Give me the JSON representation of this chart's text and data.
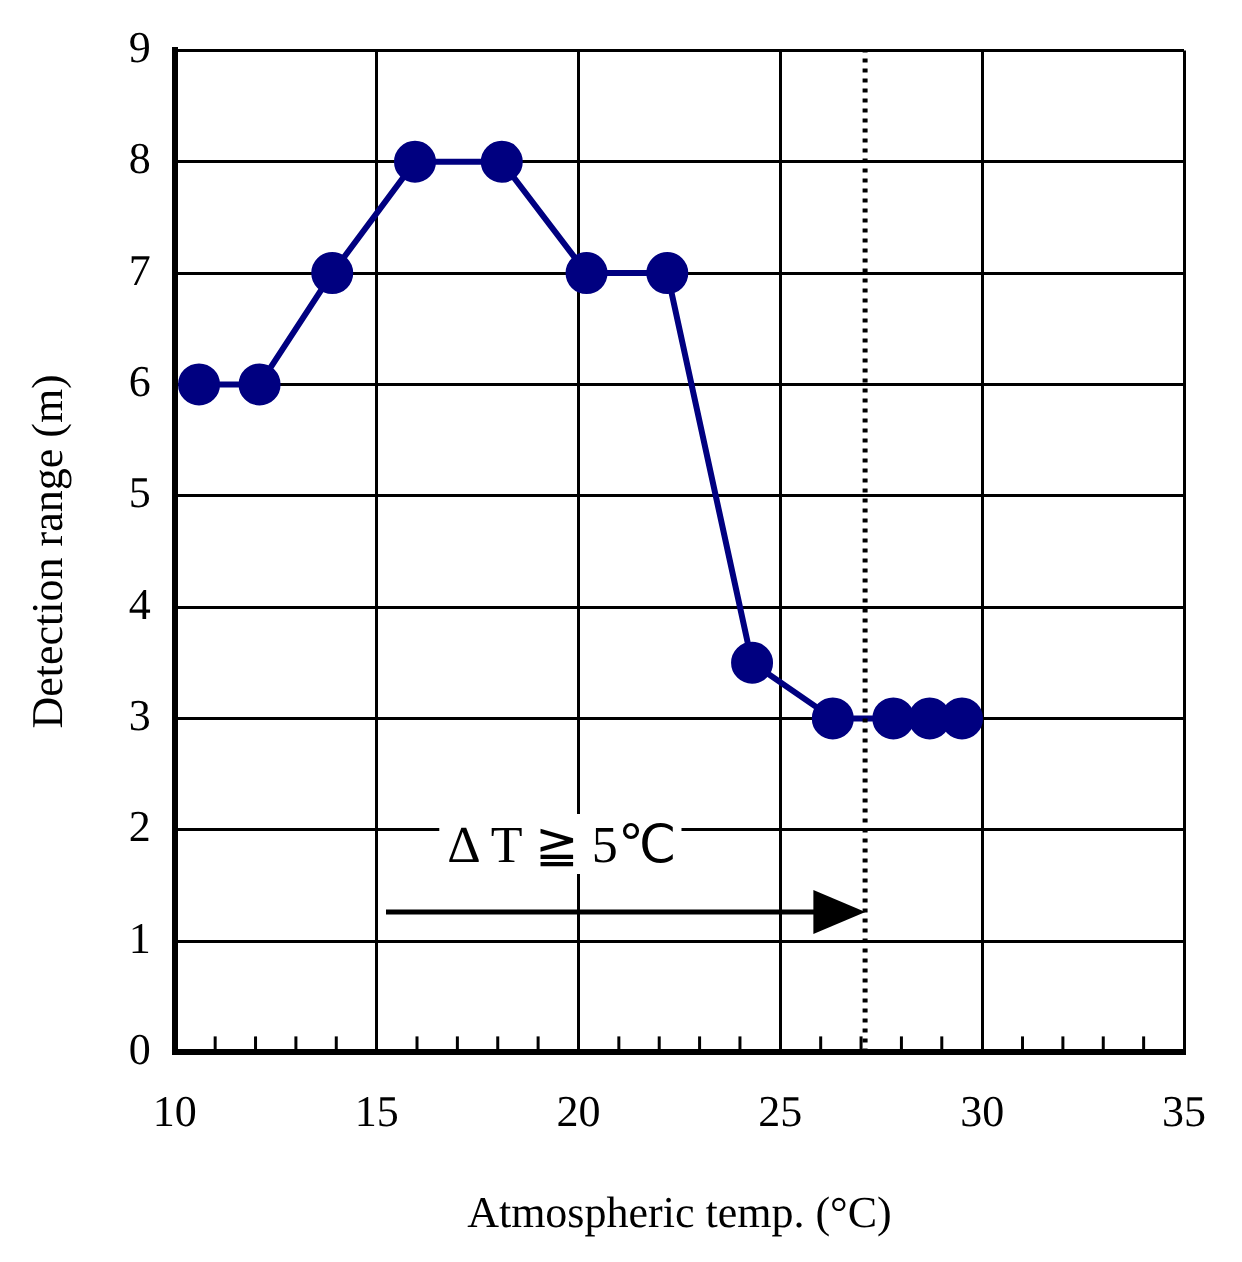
{
  "chart_data": {
    "type": "line",
    "xlabel": "Atmospheric temp. (°C)",
    "ylabel": "Detection range (m)",
    "series": [
      {
        "color": "#000080",
        "x": [
          10.6,
          12.1,
          13.9,
          15.95,
          18.1,
          20.2,
          22.2,
          24.3,
          26.3,
          27.8,
          28.7,
          29.5
        ],
        "values": [
          6,
          6,
          7,
          8,
          8,
          7,
          7,
          3.5,
          3,
          3,
          3,
          3
        ]
      }
    ],
    "xlim": [
      10,
      35
    ],
    "ylim": [
      0,
      9
    ],
    "xticks": [
      10,
      {
        "value": 11,
        "label": null
      },
      {
        "value": 12,
        "label": null
      },
      {
        "value": 13,
        "label": null
      },
      {
        "value": 14,
        "label": null
      },
      15,
      {
        "value": 16,
        "label": null
      },
      {
        "value": 17,
        "label": null
      },
      {
        "value": 18,
        "label": null
      },
      {
        "value": 19,
        "label": null
      },
      20,
      {
        "value": 21,
        "label": null
      },
      {
        "value": 22,
        "label": null
      },
      {
        "value": 23,
        "label": null
      },
      {
        "value": 24,
        "label": null
      },
      25,
      {
        "value": 26,
        "label": null
      },
      {
        "value": 27,
        "label": null
      },
      {
        "value": 28,
        "label": null
      },
      {
        "value": 29,
        "label": null
      },
      30,
      {
        "value": 31,
        "label": null
      },
      {
        "value": 32,
        "label": null
      },
      {
        "value": 33,
        "label": null
      },
      {
        "value": 34,
        "label": null
      },
      35
    ],
    "yticks": [
      0,
      1,
      2,
      3,
      4,
      5,
      6,
      7,
      8,
      9
    ],
    "ref_lines": [
      {
        "axis": "x",
        "value": 27.1,
        "line_style": "dotted",
        "color": "#000000"
      }
    ],
    "annotations": [
      "Δ T ≧ 5℃"
    ],
    "grid": true,
    "legend": false,
    "marker": "circle",
    "line_style": "solid"
  }
}
